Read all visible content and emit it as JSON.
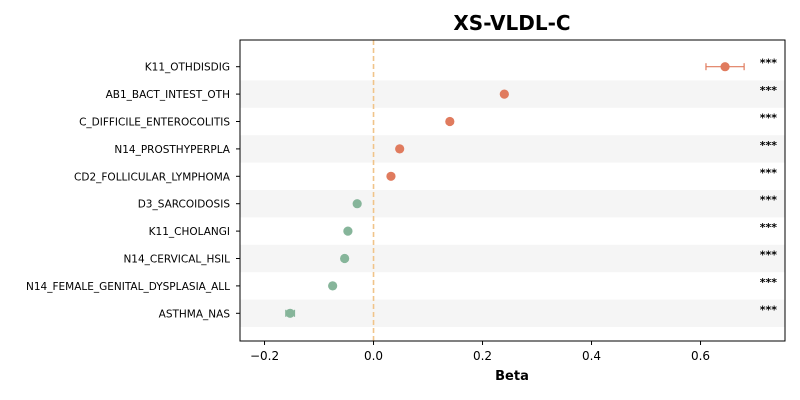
{
  "chart_data": {
    "type": "scatter",
    "title": "XS-VLDL-C",
    "xlabel": "Beta",
    "ylabel": "",
    "xlim": [
      -0.245,
      0.755
    ],
    "xticks": [
      -0.2,
      0.0,
      0.2,
      0.4,
      0.6
    ],
    "xtick_labels": [
      "−0.2",
      "0.0",
      "0.2",
      "0.4",
      "0.6"
    ],
    "reference_line": 0.0,
    "colors": {
      "positive": "#e07b5e",
      "negative": "#86b59a",
      "reference": "#f0c48a",
      "band": "#f5f5f5"
    },
    "categories": [
      "K11_OTHDISDIG",
      "AB1_BACT_INTEST_OTH",
      "C_DIFFICILE_ENTEROCOLITIS",
      "N14_PROSTHYPERPLA",
      "CD2_FOLLICULAR_LYMPHOMA",
      "D3_SARCOIDOSIS",
      "K11_CHOLANGI",
      "N14_CERVICAL_HSIL",
      "N14_FEMALE_GENITAL_DYSPLASIA_ALL",
      "ASTHMA_NAS"
    ],
    "values": [
      0.645,
      0.24,
      0.14,
      0.048,
      0.032,
      -0.03,
      -0.047,
      -0.053,
      -0.075,
      -0.153
    ],
    "ci_low": [
      0.61,
      0.236,
      0.136,
      0.045,
      0.029,
      -0.033,
      -0.05,
      -0.056,
      -0.078,
      -0.161
    ],
    "ci_high": [
      0.68,
      0.244,
      0.144,
      0.051,
      0.035,
      -0.027,
      -0.044,
      -0.05,
      -0.072,
      -0.145
    ],
    "significance": [
      "***",
      "***",
      "***",
      "***",
      "***",
      "***",
      "***",
      "***",
      "***",
      "***"
    ]
  }
}
